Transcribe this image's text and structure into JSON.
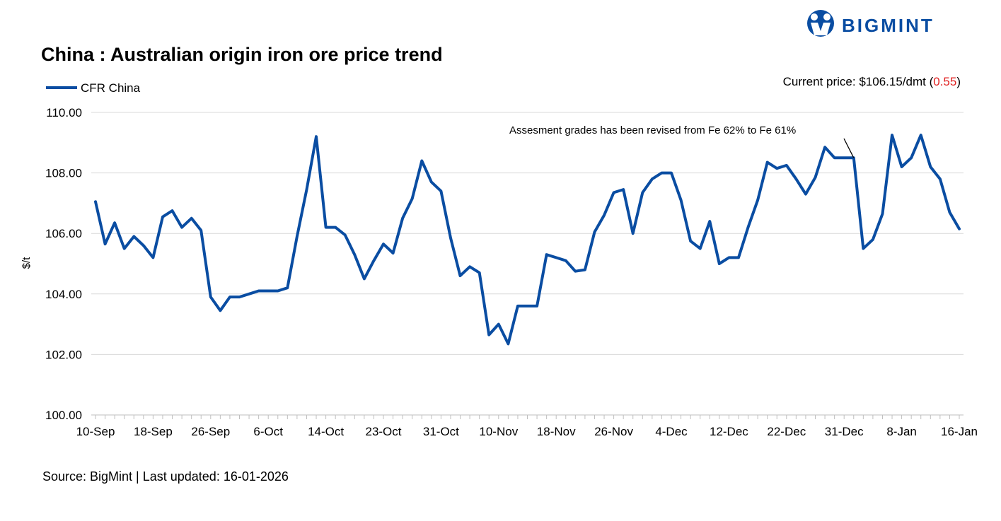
{
  "brand": {
    "name": "BIGMINT",
    "color": "#0a4da2"
  },
  "price_info": {
    "prefix": "Current price: $106.15/dmt (",
    "change": "0.55",
    "suffix": ")",
    "change_color": "#e02020"
  },
  "source": "Source: BigMint | Last updated: 16-01-2026",
  "chart_data": {
    "type": "line",
    "title": "China : Australian origin iron ore price trend",
    "xlabel": "",
    "ylabel": "$/t",
    "ylim": [
      100,
      110
    ],
    "yticks": [
      "100.00",
      "102.00",
      "104.00",
      "106.00",
      "108.00",
      "110.00"
    ],
    "ytick_values": [
      100,
      102,
      104,
      106,
      108,
      110
    ],
    "grid": true,
    "legend": "top-left",
    "xtick_labels": [
      "10-Sep",
      "18-Sep",
      "26-Sep",
      "6-Oct",
      "14-Oct",
      "23-Oct",
      "31-Oct",
      "10-Nov",
      "18-Nov",
      "26-Nov",
      "4-Dec",
      "12-Dec",
      "22-Dec",
      "31-Dec",
      "8-Jan",
      "16-Jan"
    ],
    "xtick_label_index": [
      0,
      6,
      12,
      18,
      24,
      30,
      36,
      42,
      48,
      54,
      60,
      66,
      72,
      78,
      84,
      90
    ],
    "series": [
      {
        "name": "CFR China",
        "color": "#0a4da2",
        "values": [
          107.05,
          105.65,
          106.35,
          105.5,
          105.9,
          105.6,
          105.2,
          106.55,
          106.75,
          106.2,
          106.5,
          106.1,
          103.9,
          103.45,
          103.9,
          103.9,
          104.0,
          104.1,
          104.1,
          104.1,
          104.2,
          105.9,
          107.45,
          109.2,
          106.2,
          106.2,
          105.95,
          105.3,
          104.5,
          105.1,
          105.65,
          105.35,
          106.5,
          107.15,
          108.4,
          107.7,
          107.4,
          105.85,
          104.6,
          104.9,
          104.7,
          102.65,
          103.0,
          102.35,
          103.6,
          103.6,
          103.6,
          105.3,
          105.2,
          105.1,
          104.75,
          104.8,
          106.05,
          106.6,
          107.35,
          107.45,
          106.0,
          107.35,
          107.8,
          108.0,
          108.0,
          107.1,
          105.75,
          105.5,
          106.4,
          105.0,
          105.2,
          105.2,
          106.2,
          107.1,
          108.35,
          108.15,
          108.25,
          107.8,
          107.3,
          107.85,
          108.85,
          108.5,
          108.5,
          108.5,
          105.5,
          105.8,
          106.65,
          109.25,
          108.2,
          108.5,
          109.25,
          108.2,
          107.8,
          106.7,
          106.15
        ]
      }
    ],
    "annotations": [
      {
        "text": "Assesment grades has been revised from Fe 62% to Fe 61%",
        "point_index": 79
      }
    ]
  }
}
